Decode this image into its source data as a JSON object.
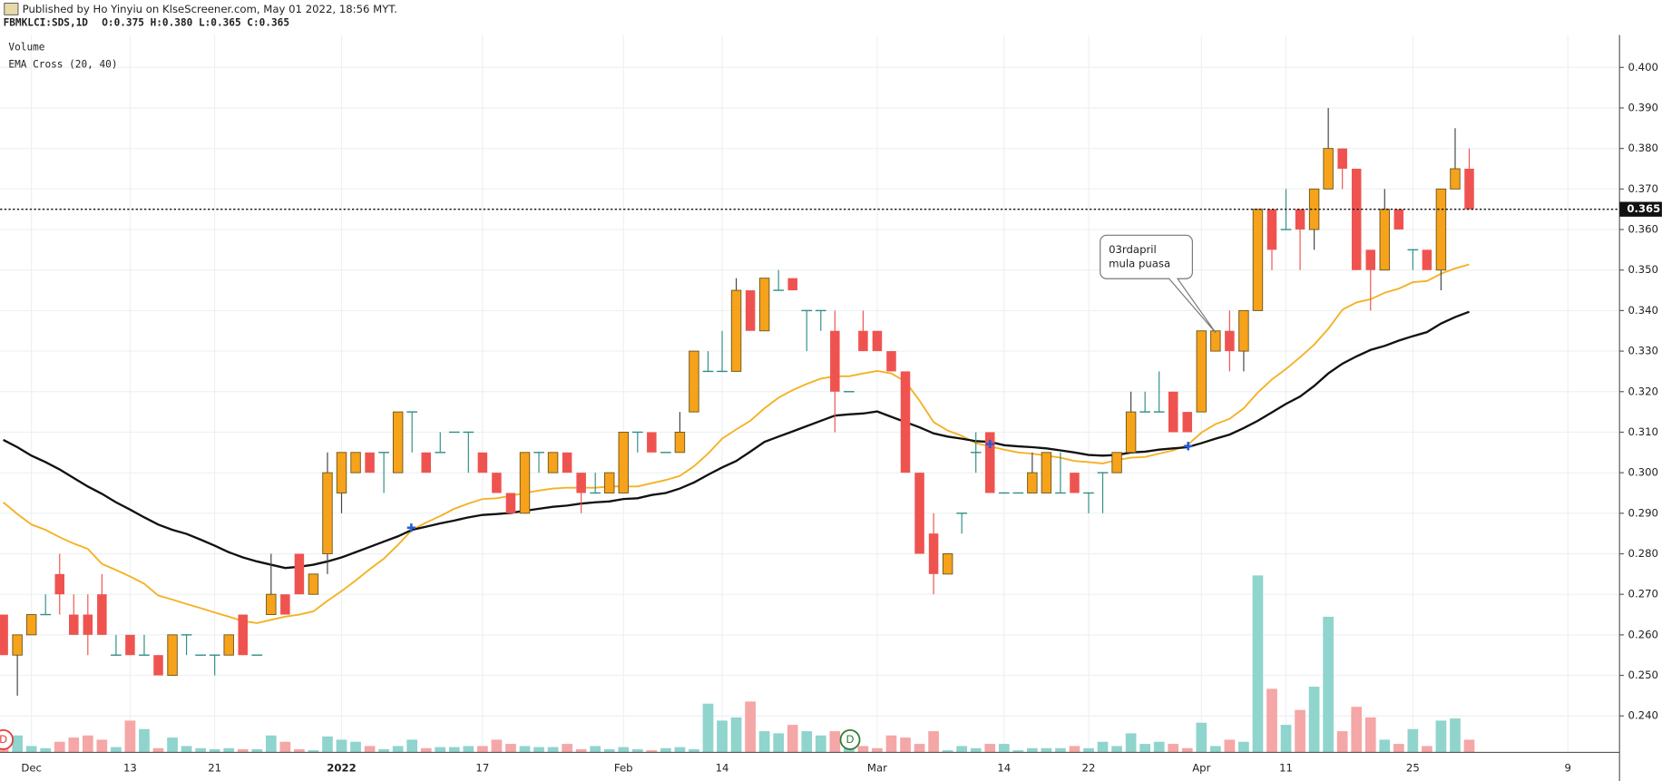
{
  "header": {
    "published": "Published by Ho Yinyiu on KlseScreener.com, May 01 2022, 18:56 MYT.",
    "symbol": "FBMKLCI:SDS,1D",
    "ohlc": "O:0.375 H:0.380 L:0.365 C:0.365"
  },
  "chart_data": {
    "type": "candlestick",
    "volume_label": "Volume",
    "indicator_label": "EMA Cross (20, 40)",
    "annotation": [
      "03rdapril",
      "mula puasa"
    ],
    "event_labels": [
      "D",
      "D"
    ],
    "categories": [
      null,
      null,
      "Dec",
      null,
      null,
      null,
      null,
      null,
      null,
      "13",
      null,
      null,
      null,
      null,
      null,
      "21",
      null,
      null,
      null,
      null,
      null,
      null,
      null,
      null,
      "2022",
      null,
      null,
      null,
      null,
      null,
      null,
      null,
      null,
      null,
      "17",
      null,
      null,
      null,
      null,
      null,
      null,
      null,
      null,
      null,
      "Feb",
      null,
      null,
      null,
      null,
      null,
      null,
      "14",
      null,
      null,
      null,
      null,
      null,
      null,
      null,
      null,
      null,
      null,
      "Mar",
      null,
      null,
      null,
      null,
      null,
      null,
      null,
      null,
      "14",
      null,
      null,
      null,
      null,
      null,
      "22",
      null,
      null,
      null,
      null,
      null,
      null,
      null,
      "Apr",
      null,
      null,
      null,
      null,
      null,
      "11",
      null,
      null,
      null,
      null,
      null,
      null,
      null,
      null,
      "25",
      null,
      null,
      null,
      null,
      null,
      null,
      null,
      null,
      null,
      null,
      "9"
    ],
    "open": [
      0.265,
      0.255,
      0.26,
      0.265,
      0.275,
      0.265,
      0.265,
      0.27,
      0.255,
      0.26,
      0.255,
      0.255,
      0.25,
      0.26,
      0.255,
      0.255,
      0.255,
      0.265,
      0.255,
      0.265,
      0.27,
      0.28,
      0.27,
      0.28,
      0.295,
      0.3,
      0.305,
      0.305,
      0.3,
      0.315,
      0.305,
      0.305,
      0.31,
      0.31,
      0.305,
      0.3,
      0.295,
      0.29,
      0.305,
      0.3,
      0.305,
      0.3,
      0.295,
      0.295,
      0.295,
      0.31,
      0.31,
      0.305,
      0.305,
      0.315,
      0.325,
      0.325,
      0.325,
      0.345,
      0.335,
      0.345,
      0.348,
      0.34,
      0.34,
      0.335,
      0.32,
      0.335,
      0.335,
      0.33,
      0.325,
      0.3,
      0.285,
      0.275,
      0.29,
      0.305,
      0.31,
      0.295,
      0.295,
      0.295,
      0.295,
      0.295,
      0.3,
      0.295,
      0.3,
      0.3,
      0.305,
      0.315,
      0.315,
      0.32,
      0.315,
      0.315,
      0.33,
      0.335,
      0.33,
      0.34,
      0.365,
      0.36,
      0.365,
      0.36,
      0.37,
      0.38,
      0.375,
      0.355,
      0.35,
      0.365,
      0.355,
      0.355,
      0.35,
      0.37,
      0.375,
      null,
      null,
      null,
      null,
      null,
      null,
      null
    ],
    "high": [
      0.265,
      0.26,
      0.265,
      0.27,
      0.28,
      0.27,
      0.27,
      0.275,
      0.26,
      0.26,
      0.26,
      0.255,
      0.26,
      0.26,
      0.255,
      0.255,
      0.26,
      0.265,
      0.255,
      0.28,
      0.27,
      0.28,
      0.275,
      0.305,
      0.305,
      0.305,
      0.305,
      0.305,
      0.315,
      0.315,
      0.305,
      0.31,
      0.31,
      0.31,
      0.305,
      0.3,
      0.295,
      0.305,
      0.305,
      0.305,
      0.305,
      0.3,
      0.3,
      0.3,
      0.31,
      0.31,
      0.31,
      0.305,
      0.315,
      0.33,
      0.33,
      0.335,
      0.348,
      0.345,
      0.348,
      0.35,
      0.348,
      0.34,
      0.34,
      0.34,
      0.32,
      0.34,
      0.335,
      0.33,
      0.325,
      0.3,
      0.29,
      0.28,
      0.29,
      0.31,
      0.31,
      0.295,
      0.295,
      0.305,
      0.305,
      0.305,
      0.3,
      0.295,
      0.3,
      0.305,
      0.32,
      0.32,
      0.325,
      0.32,
      0.315,
      0.335,
      0.335,
      0.34,
      0.34,
      0.365,
      0.365,
      0.37,
      0.365,
      0.37,
      0.39,
      0.38,
      0.375,
      0.355,
      0.37,
      0.365,
      0.355,
      0.355,
      0.37,
      0.385,
      0.38,
      null,
      null,
      null,
      null,
      null,
      null,
      null
    ],
    "low": [
      0.255,
      0.245,
      0.26,
      0.265,
      0.265,
      0.26,
      0.255,
      0.26,
      0.255,
      0.255,
      0.255,
      0.25,
      0.25,
      0.255,
      0.255,
      0.25,
      0.255,
      0.255,
      0.255,
      0.265,
      0.265,
      0.27,
      0.27,
      0.275,
      0.29,
      0.3,
      0.3,
      0.295,
      0.3,
      0.305,
      0.3,
      0.305,
      0.31,
      0.3,
      0.3,
      0.295,
      0.29,
      0.29,
      0.3,
      0.3,
      0.3,
      0.29,
      0.295,
      0.295,
      0.295,
      0.305,
      0.305,
      0.305,
      0.305,
      0.315,
      0.325,
      0.325,
      0.325,
      0.335,
      0.335,
      0.345,
      0.345,
      0.33,
      0.335,
      0.31,
      0.32,
      0.33,
      0.33,
      0.325,
      0.3,
      0.28,
      0.27,
      0.275,
      0.285,
      0.3,
      0.295,
      0.295,
      0.295,
      0.295,
      0.295,
      0.295,
      0.295,
      0.29,
      0.29,
      0.3,
      0.305,
      0.315,
      0.315,
      0.31,
      0.31,
      0.315,
      0.33,
      0.325,
      0.325,
      0.34,
      0.35,
      0.36,
      0.35,
      0.355,
      0.37,
      0.37,
      0.35,
      0.34,
      0.35,
      0.36,
      0.35,
      0.35,
      0.345,
      0.37,
      0.365,
      null,
      null,
      null,
      null,
      null,
      null,
      null
    ],
    "close": [
      0.255,
      0.26,
      0.265,
      0.265,
      0.27,
      0.26,
      0.26,
      0.26,
      0.255,
      0.255,
      0.255,
      0.25,
      0.26,
      0.26,
      0.255,
      0.255,
      0.26,
      0.255,
      0.255,
      0.27,
      0.265,
      0.27,
      0.275,
      0.3,
      0.305,
      0.305,
      0.3,
      0.305,
      0.315,
      0.315,
      0.3,
      0.305,
      0.31,
      0.31,
      0.3,
      0.295,
      0.29,
      0.305,
      0.305,
      0.305,
      0.3,
      0.295,
      0.295,
      0.3,
      0.31,
      0.31,
      0.305,
      0.305,
      0.31,
      0.33,
      0.325,
      0.325,
      0.345,
      0.335,
      0.348,
      0.345,
      0.345,
      0.34,
      0.34,
      0.32,
      0.32,
      0.33,
      0.33,
      0.325,
      0.3,
      0.28,
      0.275,
      0.28,
      0.29,
      0.305,
      0.295,
      0.295,
      0.295,
      0.3,
      0.305,
      0.295,
      0.295,
      0.295,
      0.3,
      0.305,
      0.315,
      0.315,
      0.315,
      0.31,
      0.31,
      0.335,
      0.335,
      0.33,
      0.34,
      0.365,
      0.355,
      0.36,
      0.36,
      0.37,
      0.38,
      0.375,
      0.35,
      0.35,
      0.365,
      0.36,
      0.355,
      0.35,
      0.37,
      0.375,
      0.365,
      null,
      null,
      null,
      null,
      null,
      null,
      null
    ],
    "volume": [
      8,
      16,
      6,
      4,
      10,
      14,
      16,
      12,
      5,
      30,
      22,
      4,
      14,
      6,
      4,
      3,
      4,
      3,
      3,
      16,
      10,
      3,
      2,
      15,
      12,
      10,
      6,
      3,
      6,
      12,
      4,
      5,
      5,
      6,
      6,
      12,
      8,
      6,
      5,
      5,
      8,
      3,
      6,
      3,
      5,
      3,
      2,
      4,
      5,
      3,
      46,
      30,
      33,
      48,
      20,
      18,
      26,
      20,
      16,
      20,
      10,
      6,
      4,
      16,
      14,
      8,
      20,
      2,
      6,
      4,
      8,
      8,
      2,
      4,
      4,
      4,
      6,
      4,
      10,
      6,
      18,
      8,
      10,
      8,
      4,
      28,
      6,
      12,
      10,
      167,
      60,
      26,
      40,
      62,
      128,
      20,
      43,
      33,
      12,
      8,
      22,
      6,
      30,
      32,
      12,
      null,
      null,
      null,
      null,
      null,
      null,
      null
    ],
    "overlays": [
      {
        "color": "#f5b122",
        "values": [
          0.2927,
          0.2898,
          0.2872,
          0.2859,
          0.2841,
          0.2825,
          0.2812,
          0.2775,
          0.276,
          0.2744,
          0.2726,
          0.2697,
          0.2687,
          0.2676,
          0.2666,
          0.2655,
          0.2645,
          0.2634,
          0.2629,
          0.2637,
          0.2645,
          0.265,
          0.2658,
          0.2684,
          0.2708,
          0.2734,
          0.2762,
          0.2788,
          0.2822,
          0.2859,
          0.2877,
          0.2893,
          0.2911,
          0.2924,
          0.2935,
          0.2937,
          0.2943,
          0.295,
          0.2956,
          0.2961,
          0.2963,
          0.2963,
          0.2963,
          0.2966,
          0.2966,
          0.2966,
          0.2974,
          0.2982,
          0.2992,
          0.3016,
          0.3047,
          0.3084,
          0.3107,
          0.3128,
          0.3159,
          0.3185,
          0.3204,
          0.3219,
          0.3232,
          0.3238,
          0.3238,
          0.3245,
          0.3251,
          0.3245,
          0.3225,
          0.3178,
          0.3125,
          0.3104,
          0.3091,
          0.3073,
          0.3065,
          0.3057,
          0.305,
          0.3047,
          0.3042,
          0.3037,
          0.3029,
          0.3026,
          0.3023,
          0.3031,
          0.3037,
          0.3039,
          0.3047,
          0.3055,
          0.3068,
          0.3099,
          0.312,
          0.3133,
          0.3159,
          0.3198,
          0.323,
          0.3256,
          0.3285,
          0.3316,
          0.3355,
          0.3402,
          0.342,
          0.3428,
          0.3444,
          0.3454,
          0.347,
          0.3473,
          0.3491,
          0.3504,
          0.3514,
          null,
          null,
          null,
          null,
          null,
          null,
          null
        ]
      },
      {
        "color": "#111111",
        "values": [
          0.3081,
          0.3063,
          0.3042,
          0.3026,
          0.3008,
          0.2987,
          0.2966,
          0.2948,
          0.2927,
          0.2909,
          0.289,
          0.2872,
          0.2859,
          0.2849,
          0.2835,
          0.282,
          0.2804,
          0.2791,
          0.2781,
          0.2773,
          0.2765,
          0.2768,
          0.2773,
          0.2781,
          0.2791,
          0.2804,
          0.2817,
          0.283,
          0.2843,
          0.2859,
          0.2867,
          0.2875,
          0.2882,
          0.289,
          0.2896,
          0.2898,
          0.2901,
          0.2906,
          0.2911,
          0.2916,
          0.2919,
          0.2924,
          0.2927,
          0.2929,
          0.2935,
          0.2937,
          0.2945,
          0.295,
          0.2961,
          0.2976,
          0.2995,
          0.3013,
          0.3029,
          0.3052,
          0.3076,
          0.3089,
          0.3102,
          0.3115,
          0.3128,
          0.3141,
          0.3144,
          0.3146,
          0.3151,
          0.3138,
          0.3125,
          0.3112,
          0.3097,
          0.3089,
          0.3084,
          0.3078,
          0.3076,
          0.3068,
          0.3065,
          0.3063,
          0.306,
          0.3055,
          0.305,
          0.3044,
          0.3042,
          0.3044,
          0.305,
          0.3052,
          0.3057,
          0.306,
          0.3063,
          0.3073,
          0.3084,
          0.3094,
          0.311,
          0.3128,
          0.3149,
          0.317,
          0.3188,
          0.3214,
          0.3245,
          0.3269,
          0.3287,
          0.3303,
          0.3313,
          0.3326,
          0.3337,
          0.3347,
          0.3368,
          0.3384,
          0.3397,
          null,
          null,
          null,
          null,
          null,
          null,
          null
        ]
      }
    ],
    "up_color": "#f7a21b",
    "down_color": "#ef5350",
    "volume_up_color": "#8fd4cd",
    "volume_down_color": "#f5a6a6",
    "last_price": {
      "value": 0.365,
      "label": "0.365"
    },
    "ylim": [
      0.231,
      0.408
    ],
    "yticks": [
      {
        "value": 0.24,
        "label": "0.240"
      },
      {
        "value": 0.25,
        "label": "0.250"
      },
      {
        "value": 0.26,
        "label": "0.260"
      },
      {
        "value": 0.27,
        "label": "0.270"
      },
      {
        "value": 0.28,
        "label": "0.280"
      },
      {
        "value": 0.29,
        "label": "0.290"
      },
      {
        "value": 0.3,
        "label": "0.300"
      },
      {
        "value": 0.31,
        "label": "0.310"
      },
      {
        "value": 0.32,
        "label": "0.320"
      },
      {
        "value": 0.33,
        "label": "0.330"
      },
      {
        "value": 0.34,
        "label": "0.340"
      },
      {
        "value": 0.35,
        "label": "0.350"
      },
      {
        "value": 0.36,
        "label": "0.360"
      },
      {
        "value": 0.37,
        "label": "0.370"
      },
      {
        "value": 0.38,
        "label": "0.380"
      },
      {
        "value": 0.39,
        "label": "0.390"
      },
      {
        "value": 0.4,
        "label": "0.400"
      }
    ],
    "grid": true
  }
}
